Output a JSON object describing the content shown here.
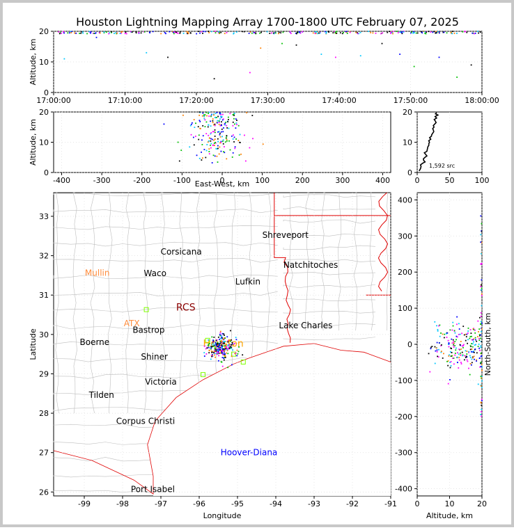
{
  "title": "Houston Lightning Mapping Array 1700-1800 UTC February 07, 2025",
  "colors": {
    "state_border": "#e00000",
    "county_border": "#bdbdbd",
    "grid": "#dddddd",
    "points": [
      "#0000ff",
      "#00c8ff",
      "#00c000",
      "#ff00ff",
      "#000000",
      "#ff8000"
    ]
  },
  "chart_data": [
    {
      "panel": "altitude-vs-time",
      "type": "scatter",
      "ylabel": "Altitude, km",
      "ylim": [
        0,
        20
      ],
      "yticks": [
        "0",
        "10",
        "20"
      ],
      "xticks": [
        "17:00:00",
        "17:10:00",
        "17:20:00",
        "17:30:00",
        "17:40:00",
        "17:50:00",
        "18:00:00"
      ],
      "xlim_minutes": [
        0,
        60
      ],
      "sample_points": [
        {
          "t": 1.5,
          "alt": 11.0
        },
        {
          "t": 6.0,
          "alt": 18.0
        },
        {
          "t": 13.0,
          "alt": 13.0
        },
        {
          "t": 16.0,
          "alt": 11.5
        },
        {
          "t": 22.5,
          "alt": 4.5
        },
        {
          "t": 27.5,
          "alt": 6.5
        },
        {
          "t": 29.0,
          "alt": 14.5
        },
        {
          "t": 32.0,
          "alt": 16.0
        },
        {
          "t": 34.0,
          "alt": 15.5
        },
        {
          "t": 37.5,
          "alt": 12.5
        },
        {
          "t": 39.5,
          "alt": 11.5
        },
        {
          "t": 43.0,
          "alt": 12.0
        },
        {
          "t": 46.0,
          "alt": 16.0
        },
        {
          "t": 48.5,
          "alt": 12.5
        },
        {
          "t": 50.5,
          "alt": 8.5
        },
        {
          "t": 54.0,
          "alt": 11.5
        },
        {
          "t": 56.5,
          "alt": 5.0
        },
        {
          "t": 58.5,
          "alt": 9.0
        }
      ]
    },
    {
      "panel": "altitude-vs-east-west",
      "type": "scatter",
      "xlabel": "East-West, km",
      "ylabel": "Altitude, km",
      "xlim": [
        -420,
        420
      ],
      "xticks": [
        "-400",
        "-300",
        "-200",
        "-100",
        "0",
        "100",
        "200",
        "300",
        "400"
      ],
      "ylim": [
        0,
        20
      ],
      "yticks": [
        "0",
        "10",
        "20"
      ],
      "cluster": {
        "x_center_km": -10,
        "x_spread_km": 45,
        "alt_range_km": [
          3,
          20
        ],
        "count": 220
      }
    },
    {
      "panel": "source-count-histogram",
      "type": "line",
      "xlim": [
        0,
        100
      ],
      "xticks": [
        "0",
        "50",
        "100"
      ],
      "ylim": [
        0,
        20
      ],
      "yticks": [
        "0",
        "10",
        "20"
      ],
      "annotation": "1,592 src",
      "profile": [
        {
          "alt": 0.5,
          "count": 3
        },
        {
          "alt": 2,
          "count": 6
        },
        {
          "alt": 3,
          "count": 8
        },
        {
          "alt": 4,
          "count": 10
        },
        {
          "alt": 5,
          "count": 12
        },
        {
          "alt": 6,
          "count": 13
        },
        {
          "alt": 7,
          "count": 15
        },
        {
          "alt": 8,
          "count": 16
        },
        {
          "alt": 9,
          "count": 18
        },
        {
          "alt": 10,
          "count": 19
        },
        {
          "alt": 11,
          "count": 21
        },
        {
          "alt": 12,
          "count": 22
        },
        {
          "alt": 13,
          "count": 24
        },
        {
          "alt": 14,
          "count": 25
        },
        {
          "alt": 15,
          "count": 26
        },
        {
          "alt": 16,
          "count": 27
        },
        {
          "alt": 17,
          "count": 28
        },
        {
          "alt": 18,
          "count": 30
        },
        {
          "alt": 19,
          "count": 32
        },
        {
          "alt": 19.8,
          "count": 30
        }
      ]
    },
    {
      "panel": "plan-view-map",
      "type": "scatter",
      "xlabel": "Longitude",
      "ylabel": "Latitude",
      "xlim": [
        -99.8,
        -91.0
      ],
      "xticks": [
        "-99",
        "-98",
        "-97",
        "-96",
        "-95",
        "-94",
        "-93",
        "-92",
        "-91"
      ],
      "ylim": [
        25.9,
        33.6
      ],
      "yticks": [
        "26",
        "27",
        "28",
        "29",
        "30",
        "31",
        "32",
        "33"
      ],
      "cluster": {
        "lon_center": -95.45,
        "lat_center": 29.68,
        "lon_spread": 0.32,
        "lat_spread": 0.28,
        "count": 260
      },
      "places": [
        {
          "name": "Shreveport",
          "lon": -93.75,
          "lat": 32.52,
          "color": "#000000"
        },
        {
          "name": "Corsicana",
          "lon": -96.47,
          "lat": 32.1,
          "color": "#000000"
        },
        {
          "name": "Natchitoches",
          "lon": -93.09,
          "lat": 31.76,
          "color": "#000000"
        },
        {
          "name": "Mullin",
          "lon": -98.66,
          "lat": 31.56,
          "color": "#ff8c3c"
        },
        {
          "name": "Waco",
          "lon": -97.15,
          "lat": 31.55,
          "color": "#000000"
        },
        {
          "name": "Lufkin",
          "lon": -94.73,
          "lat": 31.34,
          "color": "#000000"
        },
        {
          "name": "RCS",
          "lon": -96.35,
          "lat": 30.68,
          "color": "#8b0000"
        },
        {
          "name": "ATX",
          "lon": -97.76,
          "lat": 30.28,
          "color": "#ff8c3c"
        },
        {
          "name": "Bastrop",
          "lon": -97.32,
          "lat": 30.11,
          "color": "#000000"
        },
        {
          "name": "Lake Charles",
          "lon": -93.22,
          "lat": 30.23,
          "color": "#000000"
        },
        {
          "name": "Houston",
          "lon": -95.37,
          "lat": 29.76,
          "color": "#ffa500"
        },
        {
          "name": "Boerne",
          "lon": -98.73,
          "lat": 29.8,
          "color": "#000000"
        },
        {
          "name": "Shiner",
          "lon": -97.17,
          "lat": 29.43,
          "color": "#000000"
        },
        {
          "name": "Victoria",
          "lon": -97.0,
          "lat": 28.8,
          "color": "#000000"
        },
        {
          "name": "Tilden",
          "lon": -98.55,
          "lat": 28.46,
          "color": "#000000"
        },
        {
          "name": "Corpus Christi",
          "lon": -97.4,
          "lat": 27.8,
          "color": "#000000"
        },
        {
          "name": "Hoover-Diana",
          "lon": -94.7,
          "lat": 27.0,
          "color": "#0000ff"
        },
        {
          "name": "Port Isabel",
          "lon": -97.21,
          "lat": 26.07,
          "color": "#000000"
        }
      ]
    },
    {
      "panel": "north-south-vs-altitude",
      "type": "scatter",
      "xlabel": "Altitude, km",
      "ylabel": "North-South, km",
      "xlim": [
        0,
        20
      ],
      "xticks": [
        "0",
        "10",
        "20"
      ],
      "ylim": [
        -420,
        420
      ],
      "yticks": [
        "-400",
        "-300",
        "-200",
        "-100",
        "0",
        "100",
        "200",
        "300",
        "400"
      ],
      "cluster": {
        "y_center_km": -10,
        "y_spread_km": 45,
        "alt_range_km": [
          3,
          20
        ],
        "count": 220
      }
    }
  ]
}
